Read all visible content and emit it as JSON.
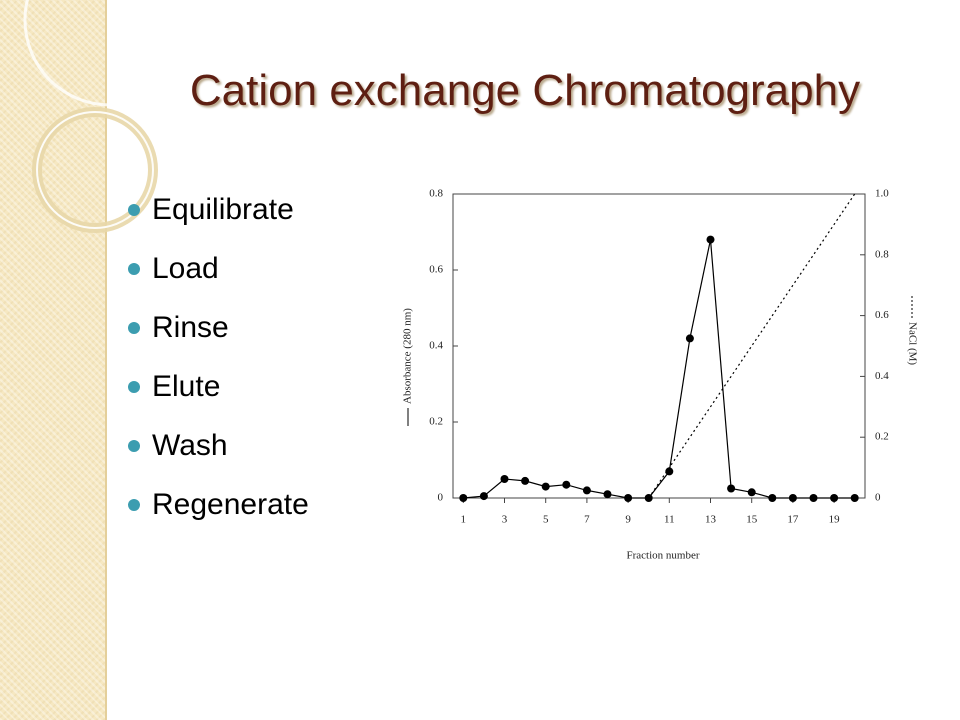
{
  "slide": {
    "title": "Cation exchange Chromatography",
    "bullets": [
      "Equilibrate",
      "Load",
      "Rinse",
      "Elute",
      "Wash",
      "Regenerate"
    ]
  },
  "chart_data": {
    "type": "line",
    "xlabel": "Fraction number",
    "ylabel": "Absorbance (280 nm)",
    "y2label": "NaCl (M)",
    "x": [
      1,
      2,
      3,
      4,
      5,
      6,
      7,
      8,
      9,
      10,
      11,
      12,
      13,
      14,
      15,
      16,
      17,
      18,
      19,
      20
    ],
    "series": [
      {
        "color": "#000000",
        "style": "solid",
        "marker": "circle",
        "values": [
          0,
          0.005,
          0.05,
          0.045,
          0.03,
          0.035,
          0.02,
          0.01,
          0,
          0,
          0.07,
          0.42,
          0.68,
          0.025,
          0.015,
          0,
          0,
          0,
          0,
          0
        ]
      },
      {
        "color": "#000000",
        "style": "dotted",
        "axis": "y2",
        "x": [
          10,
          20
        ],
        "values": [
          0,
          1
        ]
      }
    ],
    "xlim": [
      0.5,
      20.5
    ],
    "xticks": [
      1,
      3,
      5,
      7,
      9,
      11,
      13,
      15,
      17,
      19
    ],
    "ylim": [
      0,
      0.8
    ],
    "yticks": [
      0,
      0.2,
      0.4,
      0.6,
      0.8
    ],
    "y2lim": [
      0,
      1
    ],
    "y2ticks": [
      0,
      0.2,
      0.4,
      0.6,
      0.8,
      {
        "value": 1,
        "label": "1.0"
      }
    ]
  }
}
